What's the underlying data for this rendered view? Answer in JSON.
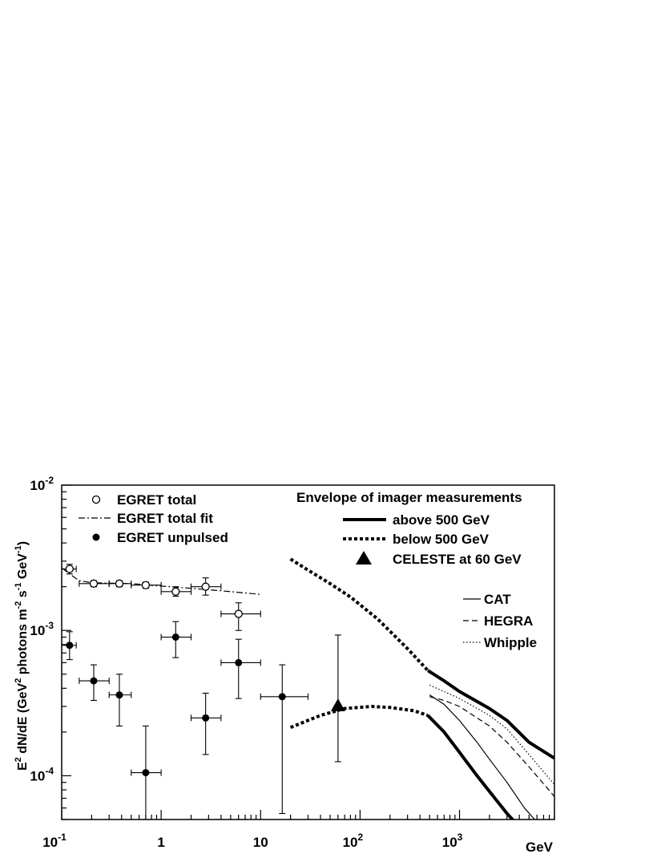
{
  "chart_data": {
    "type": "scatter",
    "xscale": "log",
    "yscale": "log",
    "xlim": [
      0.1,
      9000
    ],
    "ylim": [
      5e-05,
      0.01
    ],
    "xlabel": "GeV",
    "ylabel_parts": [
      "E",
      "2",
      " dN/dE (GeV",
      "2",
      " photons m",
      "-2",
      " s",
      "-1",
      " GeV",
      "-1",
      ")"
    ],
    "x_ticks": [
      {
        "value": 0.1,
        "base": "10",
        "exp": "-1"
      },
      {
        "value": 1,
        "base": "1",
        "exp": ""
      },
      {
        "value": 10,
        "base": "10",
        "exp": ""
      },
      {
        "value": 100,
        "base": "10",
        "exp": "2"
      },
      {
        "value": 1000,
        "base": "10",
        "exp": "3"
      }
    ],
    "y_ticks": [
      {
        "value": 0.01,
        "base": "10",
        "exp": "-2"
      },
      {
        "value": 0.001,
        "base": "10",
        "exp": "-3"
      },
      {
        "value": 0.0001,
        "base": "10",
        "exp": "-4"
      }
    ],
    "legend_left": [
      {
        "label": "EGRET total",
        "marker": "open-circle"
      },
      {
        "label": "EGRET total fit",
        "marker": "dash-dot-line"
      },
      {
        "label": "EGRET unpulsed",
        "marker": "filled-circle"
      }
    ],
    "legend_right": {
      "title": "Envelope of imager measurements",
      "items": [
        {
          "label": "above 500 GeV",
          "marker": "thick-solid"
        },
        {
          "label": "below 500 GeV",
          "marker": "thick-dotted"
        },
        {
          "label": "CELESTE at 60 GeV",
          "marker": "filled-triangle"
        }
      ]
    },
    "legend_experiments": [
      {
        "label": "CAT",
        "marker": "thin-solid"
      },
      {
        "label": "HEGRA",
        "marker": "dashed"
      },
      {
        "label": "Whipple",
        "marker": "dotted"
      }
    ],
    "series": [
      {
        "name": "EGRET total",
        "marker": "open-circle",
        "points": [
          {
            "x": 0.12,
            "y": 0.00265,
            "xlo": 0.1,
            "xhi": 0.14,
            "ylo": 0.00245,
            "yhi": 0.00285
          },
          {
            "x": 0.21,
            "y": 0.0021,
            "xlo": 0.15,
            "xhi": 0.3,
            "ylo": 0.002,
            "yhi": 0.0022
          },
          {
            "x": 0.38,
            "y": 0.0021,
            "xlo": 0.3,
            "xhi": 0.5,
            "ylo": 0.002,
            "yhi": 0.0022
          },
          {
            "x": 0.7,
            "y": 0.00205,
            "xlo": 0.5,
            "xhi": 1.0,
            "ylo": 0.00195,
            "yhi": 0.00215
          },
          {
            "x": 1.4,
            "y": 0.00185,
            "xlo": 1.0,
            "xhi": 2.0,
            "ylo": 0.00172,
            "yhi": 0.002
          },
          {
            "x": 2.8,
            "y": 0.002,
            "xlo": 2.0,
            "xhi": 4.0,
            "ylo": 0.00175,
            "yhi": 0.0023
          },
          {
            "x": 6.0,
            "y": 0.0013,
            "xlo": 4.0,
            "xhi": 10.0,
            "ylo": 0.001,
            "yhi": 0.00155
          }
        ]
      },
      {
        "name": "EGRET unpulsed",
        "marker": "filled-circle",
        "points": [
          {
            "x": 0.12,
            "y": 0.00079,
            "xlo": 0.1,
            "xhi": 0.14,
            "ylo": 0.00063,
            "yhi": 0.00098
          },
          {
            "x": 0.21,
            "y": 0.00045,
            "xlo": 0.15,
            "xhi": 0.3,
            "ylo": 0.00033,
            "yhi": 0.00058
          },
          {
            "x": 0.38,
            "y": 0.00036,
            "xlo": 0.3,
            "xhi": 0.5,
            "ylo": 0.00022,
            "yhi": 0.0005
          },
          {
            "x": 0.7,
            "y": 0.000105,
            "xlo": 0.5,
            "xhi": 1.0,
            "ylo": 5e-05,
            "yhi": 0.00022
          },
          {
            "x": 1.4,
            "y": 0.0009,
            "xlo": 1.0,
            "xhi": 2.0,
            "ylo": 0.00065,
            "yhi": 0.00115
          },
          {
            "x": 2.8,
            "y": 0.00025,
            "xlo": 2.0,
            "xhi": 4.0,
            "ylo": 0.00014,
            "yhi": 0.00037
          },
          {
            "x": 6.0,
            "y": 0.0006,
            "xlo": 4.0,
            "xhi": 10.0,
            "ylo": 0.00034,
            "yhi": 0.00087
          },
          {
            "x": 16.5,
            "y": 0.00035,
            "xlo": 10.0,
            "xhi": 30.0,
            "ylo": 5.5e-05,
            "yhi": 0.00058
          }
        ]
      },
      {
        "name": "CELESTE at 60 GeV",
        "marker": "filled-triangle",
        "points": [
          {
            "x": 60,
            "y": 0.0003,
            "ylo": 0.000125,
            "yhi": 0.00093
          }
        ]
      },
      {
        "name": "EGRET total fit",
        "style": "dash-dot",
        "points": [
          [
            0.1,
            0.0027
          ],
          [
            0.12,
            0.00245
          ],
          [
            0.15,
            0.0022
          ],
          [
            0.2,
            0.00213
          ],
          [
            0.5,
            0.0021
          ],
          [
            1.0,
            0.00202
          ],
          [
            2.0,
            0.00195
          ],
          [
            5.0,
            0.00185
          ],
          [
            10.0,
            0.00177
          ]
        ]
      },
      {
        "name": "above 500 GeV upper",
        "style": "thick-solid",
        "points": [
          [
            480,
            0.00053
          ],
          [
            700,
            0.00045
          ],
          [
            1000,
            0.00038
          ],
          [
            2000,
            0.00029
          ],
          [
            3000,
            0.00024
          ],
          [
            5000,
            0.00017
          ],
          [
            9000,
            0.000132
          ]
        ]
      },
      {
        "name": "above 500 GeV lower",
        "style": "thick-solid",
        "points": [
          [
            480,
            0.00026
          ],
          [
            700,
            0.0002
          ],
          [
            1000,
            0.000145
          ],
          [
            1500,
            0.0001
          ],
          [
            2000,
            7.8e-05
          ],
          [
            3000,
            5.5e-05
          ],
          [
            3600,
            4.8e-05
          ]
        ]
      },
      {
        "name": "below 500 GeV upper",
        "style": "thick-dotted",
        "points": [
          [
            20,
            0.0031
          ],
          [
            30,
            0.0026
          ],
          [
            50,
            0.0021
          ],
          [
            80,
            0.0017
          ],
          [
            150,
            0.0012
          ],
          [
            300,
            0.00075
          ],
          [
            480,
            0.00053
          ]
        ]
      },
      {
        "name": "below 500 GeV lower",
        "style": "thick-dotted",
        "points": [
          [
            20,
            0.000215
          ],
          [
            40,
            0.00026
          ],
          [
            70,
            0.00029
          ],
          [
            130,
            0.0003
          ],
          [
            200,
            0.000295
          ],
          [
            350,
            0.00028
          ],
          [
            480,
            0.00026
          ]
        ]
      },
      {
        "name": "CAT",
        "style": "thin-solid",
        "points": [
          [
            500,
            0.00036
          ],
          [
            700,
            0.00031
          ],
          [
            1000,
            0.00024
          ],
          [
            1500,
            0.00017
          ],
          [
            2000,
            0.00013
          ],
          [
            3000,
            9e-05
          ],
          [
            4500,
            6e-05
          ],
          [
            6000,
            4.8e-05
          ]
        ]
      },
      {
        "name": "HEGRA",
        "style": "dashed",
        "points": [
          [
            500,
            0.00035
          ],
          [
            700,
            0.00033
          ],
          [
            1000,
            0.0003
          ],
          [
            2000,
            0.00022
          ],
          [
            3000,
            0.00017
          ],
          [
            5000,
            0.000115
          ],
          [
            9000,
            7.2e-05
          ]
        ]
      },
      {
        "name": "Whipple",
        "style": "dotted",
        "points": [
          [
            500,
            0.00042
          ],
          [
            700,
            0.00038
          ],
          [
            1000,
            0.00034
          ],
          [
            2000,
            0.00026
          ],
          [
            3000,
            0.00021
          ],
          [
            5000,
            0.00014
          ],
          [
            9000,
            8.7e-05
          ]
        ]
      }
    ]
  }
}
